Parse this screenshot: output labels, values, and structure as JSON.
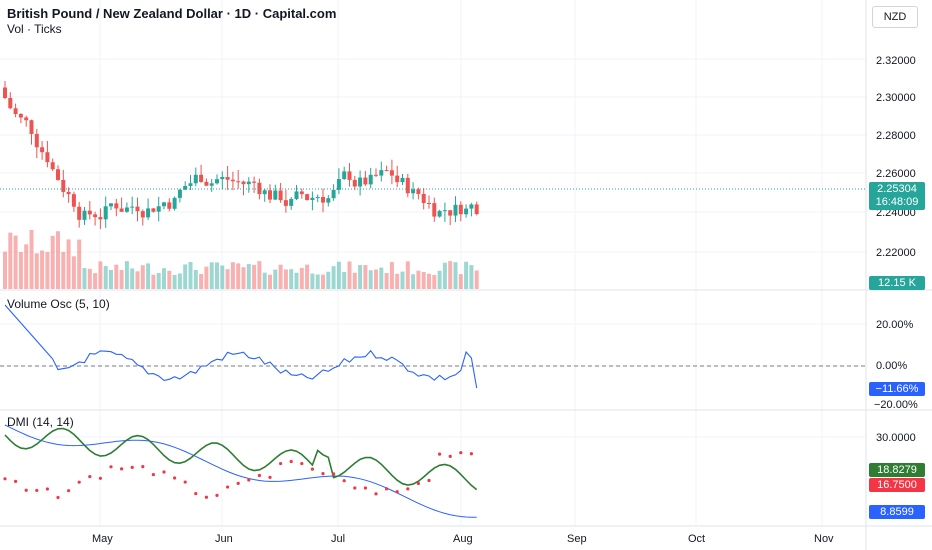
{
  "header": {
    "title": "British Pound / New Zealand Dollar · 1D · Capital.com",
    "subtitle": "Vol · Ticks",
    "currency": "NZD"
  },
  "price_pane": {
    "axis_ticks": [
      "2.32000",
      "2.30000",
      "2.28000",
      "2.26000",
      "2.24000",
      "2.22000"
    ],
    "last_price": "2.25304",
    "countdown": "16:48:09",
    "volume_label": "12.15 K",
    "up_color": "#26a69a",
    "down_color": "#ef5350"
  },
  "osc_pane": {
    "label": "Volume Osc (5, 10)",
    "axis_ticks": [
      "20.00%",
      "0.00%",
      "−20.00%"
    ],
    "current": "−11.66%",
    "line_color": "#2962ff"
  },
  "dmi_pane": {
    "label": "DMI (14, 14)",
    "axis_ticks": [
      "30.0000"
    ],
    "adx": "18.8279",
    "minus_di": "16.7500",
    "plus_di": "8.8599",
    "adx_color": "#2e7d32",
    "plus_color": "#2962ff",
    "minus_color": "#f23645"
  },
  "time_axis": [
    "May",
    "Jun",
    "Jul",
    "Aug",
    "Sep",
    "Oct",
    "Nov"
  ]
}
